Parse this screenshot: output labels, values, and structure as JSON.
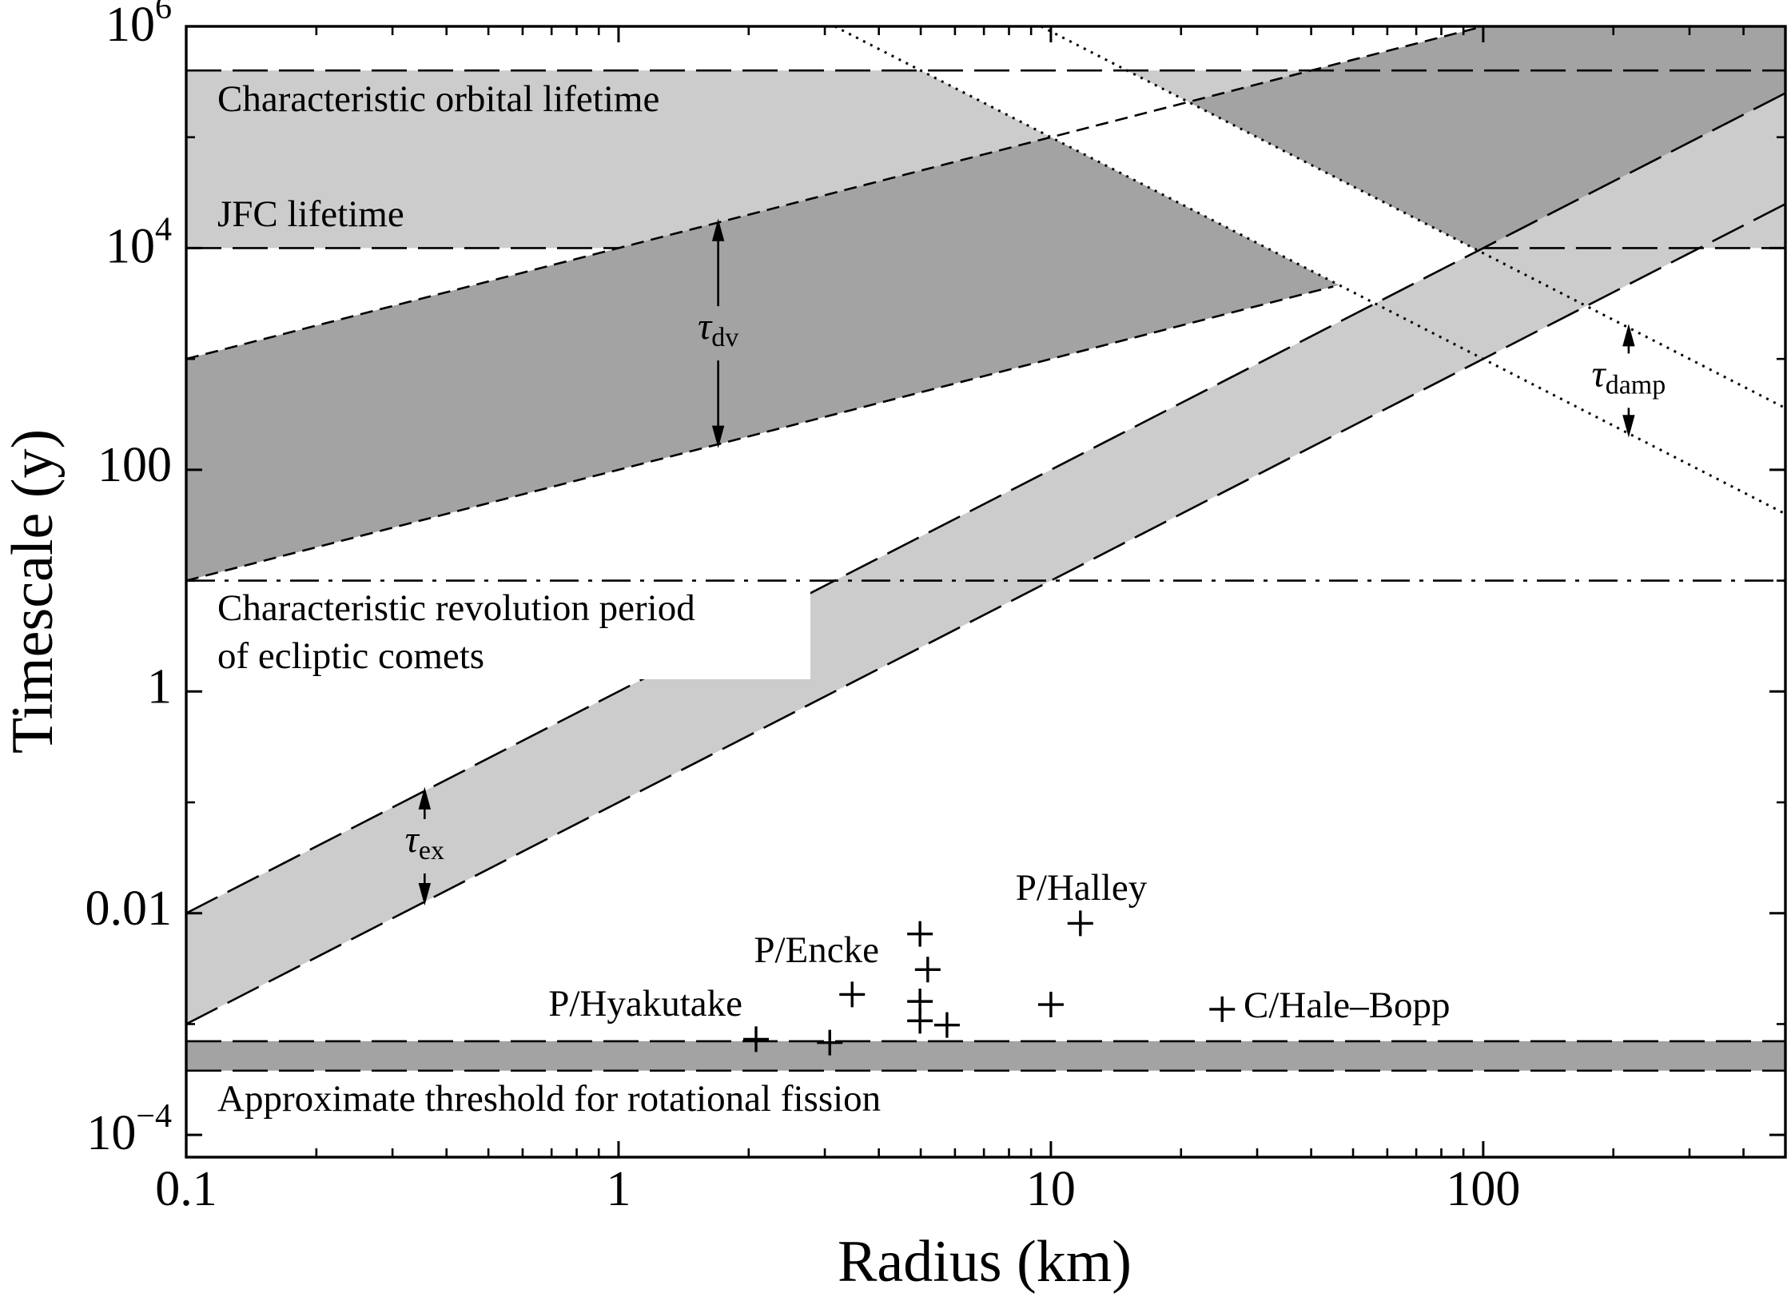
{
  "chart_data": {
    "type": "log-bands",
    "xlabel": "Radius (km)",
    "ylabel": "Timescale (y)",
    "xscale": "log",
    "yscale": "log",
    "xlim": [
      0.1,
      500
    ],
    "ylim": [
      6.3e-05,
      1000000
    ],
    "xticks": [
      0.1,
      1,
      10,
      100
    ],
    "xminorticks": [
      0.2,
      0.3,
      0.4,
      0.5,
      0.6,
      0.7,
      0.8,
      0.9,
      2,
      3,
      4,
      5,
      6,
      7,
      8,
      9,
      20,
      30,
      40,
      50,
      60,
      70,
      80,
      90,
      200,
      300,
      400
    ],
    "yticks": [
      {
        "value": 0.0001,
        "label": "10",
        "sup": "−4"
      },
      0.01,
      1,
      100,
      {
        "value": 10000,
        "label": "10",
        "sup": "4"
      },
      {
        "value": 1000000,
        "label": "10",
        "sup": "6"
      }
    ],
    "yminorticks": [
      0.001,
      0.1,
      10,
      1000,
      100000
    ],
    "bands": [
      {
        "x": [
          0.1,
          500,
          500,
          0.1
        ],
        "y": [
          400000,
          400000,
          10000,
          10000
        ],
        "color": "#cccccc"
      },
      {
        "x": [
          0.1,
          0.1,
          100,
          500,
          500
        ],
        "y": [
          10,
          1000,
          1000000,
          1000000,
          50000
        ],
        "color": "#a3a3a3"
      },
      {
        "x": [
          3.162,
          9.487,
          500,
          500
        ],
        "y": [
          1000000,
          1000000,
          360,
          40
        ],
        "color": "#ffffff"
      },
      {
        "x": [
          0.1,
          0.1,
          500,
          500
        ],
        "y": [
          0.001,
          0.01,
          250000,
          25000
        ],
        "color": "#cccccc"
      },
      {
        "x": [
          0.1,
          500,
          500,
          0.1
        ],
        "y": [
          0.0007,
          0.0007,
          0.00038,
          0.00038
        ],
        "color": "#a3a3a3"
      }
    ],
    "lines": [
      {
        "x": [
          0.1,
          500
        ],
        "y": [
          400000,
          400000
        ],
        "dash": "long"
      },
      {
        "x": [
          0.1,
          1
        ],
        "y": [
          10000,
          10000
        ],
        "dash": "long"
      },
      {
        "x": [
          100,
          500
        ],
        "y": [
          10000,
          10000
        ],
        "dash": "long"
      },
      {
        "x": [
          0.1,
          100
        ],
        "y": [
          1000,
          1000000
        ],
        "dash": "short"
      },
      {
        "x": [
          0.1,
          45
        ],
        "y": [
          10,
          4500
        ],
        "dash": "short"
      },
      {
        "x": [
          3.162,
          500
        ],
        "y": [
          1000000,
          40
        ],
        "dash": "dotted"
      },
      {
        "x": [
          9.487,
          500
        ],
        "y": [
          1000000,
          360
        ],
        "dash": "dotted"
      },
      {
        "x": [
          0.1,
          500
        ],
        "y": [
          0.01,
          250000
        ],
        "dash": "long"
      },
      {
        "x": [
          0.1,
          500
        ],
        "y": [
          0.001,
          25000
        ],
        "dash": "long"
      },
      {
        "x": [
          0.1,
          500
        ],
        "y": [
          10,
          10
        ],
        "dash": "dashdot"
      },
      {
        "x": [
          0.1,
          500
        ],
        "y": [
          0.0007,
          0.0007
        ],
        "dash": "long"
      },
      {
        "x": [
          0.1,
          500
        ],
        "y": [
          0.00038,
          0.00038
        ],
        "dash": "long"
      }
    ],
    "arrows": [
      {
        "x": 1.7,
        "y": [
          170,
          17000
        ],
        "symbol": "τ",
        "sub": "dv"
      },
      {
        "x": 0.356,
        "y": [
          0.0127,
          0.127
        ],
        "symbol": "τ",
        "sub": "ex"
      },
      {
        "x": 217,
        "y": [
          212,
          1911
        ],
        "symbol": "τ",
        "sub": "damp"
      }
    ],
    "region_labels": [
      "Characteristic orbital lifetime",
      "JFC lifetime",
      "Characteristic revolution period",
      "of ecliptic comets",
      "Approximate threshold for rotational fission"
    ],
    "comets": {
      "x": [
        2.08,
        3.08,
        3.47,
        4.98,
        5.19,
        4.98,
        4.98,
        5.75,
        10,
        11.7,
        24.9
      ],
      "y": [
        0.00073,
        0.00068,
        0.00185,
        0.0065,
        0.0031,
        0.0016,
        0.00107,
        0.00098,
        0.0015,
        0.0081,
        0.00136
      ],
      "color": "#000000"
    },
    "comet_labels": [
      "P/Hyakutake",
      "P/Encke",
      "P/Halley",
      "C/Hale–Bopp"
    ]
  }
}
